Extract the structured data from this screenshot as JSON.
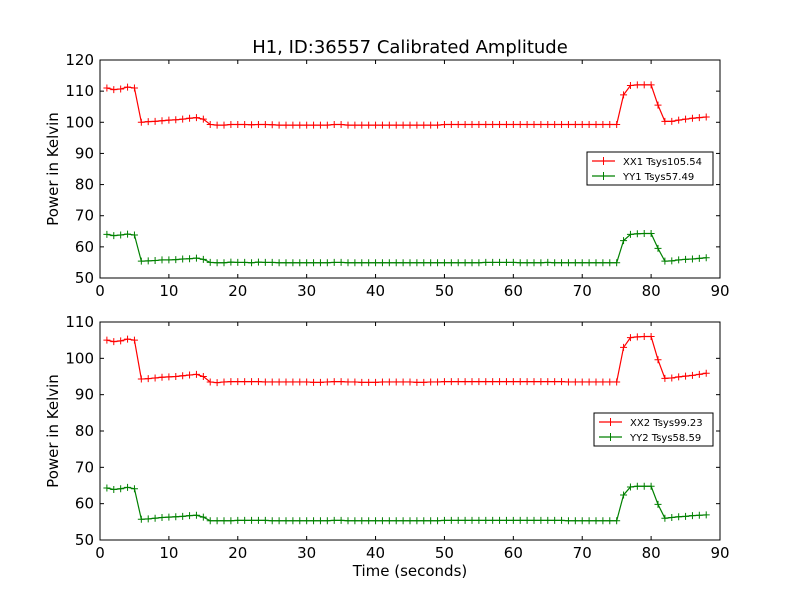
{
  "figure_title": "H1, ID:36557 Calibrated Amplitude",
  "colors": {
    "xx": "#ff0000",
    "yy": "#008000"
  },
  "chart_data": [
    {
      "type": "line",
      "title": "H1, ID:36557 Calibrated Amplitude",
      "xlabel": "",
      "ylabel": "Power in Kelvin",
      "xlim": [
        0,
        90
      ],
      "ylim": [
        50,
        120
      ],
      "xticks": [
        0,
        10,
        20,
        30,
        40,
        50,
        60,
        70,
        80,
        90
      ],
      "yticks": [
        50,
        60,
        70,
        80,
        90,
        100,
        110,
        120
      ],
      "grid": false,
      "legend_position": "center-right",
      "x": [
        1,
        2,
        3,
        4,
        5,
        6,
        7,
        8,
        9,
        10,
        11,
        12,
        13,
        14,
        15,
        16,
        17,
        18,
        19,
        20,
        21,
        22,
        23,
        24,
        25,
        26,
        27,
        28,
        29,
        30,
        31,
        32,
        33,
        34,
        35,
        36,
        37,
        38,
        39,
        40,
        41,
        42,
        43,
        44,
        45,
        46,
        47,
        48,
        49,
        50,
        51,
        52,
        53,
        54,
        55,
        56,
        57,
        58,
        59,
        60,
        61,
        62,
        63,
        64,
        65,
        66,
        67,
        68,
        69,
        70,
        71,
        72,
        73,
        74,
        75,
        76,
        77,
        78,
        79,
        80,
        81,
        82,
        83,
        84,
        85,
        86,
        87,
        88
      ],
      "series": [
        {
          "name": "XX1 Tsys105.54",
          "color": "#ff0000",
          "values": [
            111,
            110.5,
            110.7,
            111.3,
            111,
            100,
            100.2,
            100.3,
            100.5,
            100.7,
            100.8,
            101,
            101.3,
            101.5,
            101,
            99.3,
            99.1,
            99.1,
            99.3,
            99.3,
            99.3,
            99.2,
            99.3,
            99.3,
            99.2,
            99.1,
            99.1,
            99.1,
            99.1,
            99.1,
            99.1,
            99.1,
            99.1,
            99.3,
            99.3,
            99.1,
            99.1,
            99.1,
            99.1,
            99.1,
            99.1,
            99.1,
            99.1,
            99.1,
            99.1,
            99.1,
            99.1,
            99.1,
            99.1,
            99.3,
            99.3,
            99.3,
            99.3,
            99.3,
            99.3,
            99.3,
            99.3,
            99.3,
            99.3,
            99.3,
            99.3,
            99.3,
            99.3,
            99.3,
            99.3,
            99.3,
            99.3,
            99.3,
            99.3,
            99.3,
            99.3,
            99.3,
            99.3,
            99.3,
            99.3,
            108.8,
            111.8,
            112,
            112,
            112,
            105.5,
            100.3,
            100.3,
            100.7,
            101,
            101.3,
            101.5,
            101.7
          ]
        },
        {
          "name": "YY1 Tsys57.49",
          "color": "#008000",
          "values": [
            64,
            63.6,
            63.8,
            64.1,
            63.8,
            55.4,
            55.5,
            55.6,
            55.8,
            55.8,
            55.9,
            56.1,
            56.2,
            56.4,
            56,
            55,
            54.9,
            54.9,
            55.1,
            55,
            55,
            54.9,
            55.1,
            55,
            55,
            54.9,
            54.9,
            54.9,
            54.9,
            54.9,
            54.9,
            54.9,
            54.9,
            55,
            55,
            54.9,
            54.9,
            54.9,
            54.9,
            54.9,
            54.9,
            54.9,
            54.9,
            54.9,
            54.9,
            54.9,
            54.9,
            54.9,
            54.9,
            54.9,
            54.9,
            54.9,
            54.9,
            54.9,
            54.9,
            55,
            55,
            55,
            55,
            55,
            54.9,
            54.9,
            54.9,
            54.9,
            55,
            54.9,
            54.9,
            54.9,
            54.9,
            54.9,
            54.9,
            54.9,
            54.9,
            54.9,
            54.9,
            62,
            64,
            64.2,
            64.3,
            64.3,
            59.5,
            55.4,
            55.5,
            55.8,
            56,
            56.1,
            56.3,
            56.5
          ]
        }
      ]
    },
    {
      "type": "line",
      "title": "",
      "xlabel": "Time (seconds)",
      "ylabel": "Power in Kelvin",
      "xlim": [
        0,
        90
      ],
      "ylim": [
        50,
        110
      ],
      "xticks": [
        0,
        10,
        20,
        30,
        40,
        50,
        60,
        70,
        80,
        90
      ],
      "yticks": [
        50,
        60,
        70,
        80,
        90,
        100,
        110
      ],
      "grid": false,
      "legend_position": "center-right",
      "x": [
        1,
        2,
        3,
        4,
        5,
        6,
        7,
        8,
        9,
        10,
        11,
        12,
        13,
        14,
        15,
        16,
        17,
        18,
        19,
        20,
        21,
        22,
        23,
        24,
        25,
        26,
        27,
        28,
        29,
        30,
        31,
        32,
        33,
        34,
        35,
        36,
        37,
        38,
        39,
        40,
        41,
        42,
        43,
        44,
        45,
        46,
        47,
        48,
        49,
        50,
        51,
        52,
        53,
        54,
        55,
        56,
        57,
        58,
        59,
        60,
        61,
        62,
        63,
        64,
        65,
        66,
        67,
        68,
        69,
        70,
        71,
        72,
        73,
        74,
        75,
        76,
        77,
        78,
        79,
        80,
        81,
        82,
        83,
        84,
        85,
        86,
        87,
        88
      ],
      "series": [
        {
          "name": "XX2 Tsys99.23",
          "color": "#ff0000",
          "values": [
            105,
            104.6,
            104.8,
            105.3,
            105,
            94.3,
            94.4,
            94.6,
            94.8,
            94.9,
            95,
            95.2,
            95.4,
            95.6,
            95,
            93.5,
            93.3,
            93.5,
            93.6,
            93.6,
            93.6,
            93.6,
            93.6,
            93.5,
            93.5,
            93.5,
            93.5,
            93.5,
            93.5,
            93.5,
            93.4,
            93.4,
            93.5,
            93.6,
            93.6,
            93.5,
            93.5,
            93.4,
            93.4,
            93.4,
            93.5,
            93.5,
            93.5,
            93.5,
            93.5,
            93.4,
            93.4,
            93.5,
            93.5,
            93.6,
            93.6,
            93.6,
            93.6,
            93.6,
            93.6,
            93.6,
            93.6,
            93.6,
            93.6,
            93.6,
            93.6,
            93.6,
            93.6,
            93.6,
            93.6,
            93.6,
            93.6,
            93.5,
            93.5,
            93.5,
            93.5,
            93.5,
            93.5,
            93.5,
            93.5,
            103,
            105.7,
            105.9,
            106,
            106,
            99.6,
            94.5,
            94.6,
            94.9,
            95.1,
            95.3,
            95.6,
            95.9
          ]
        },
        {
          "name": "YY2 Tsys58.59",
          "color": "#008000",
          "values": [
            64.3,
            63.9,
            64.1,
            64.5,
            64.1,
            55.7,
            55.8,
            56,
            56.2,
            56.3,
            56.4,
            56.5,
            56.7,
            56.8,
            56.3,
            55.3,
            55.3,
            55.3,
            55.3,
            55.4,
            55.4,
            55.4,
            55.4,
            55.4,
            55.3,
            55.3,
            55.3,
            55.3,
            55.3,
            55.3,
            55.3,
            55.3,
            55.3,
            55.4,
            55.4,
            55.3,
            55.3,
            55.3,
            55.3,
            55.3,
            55.3,
            55.3,
            55.3,
            55.3,
            55.3,
            55.3,
            55.3,
            55.3,
            55.3,
            55.4,
            55.4,
            55.4,
            55.4,
            55.4,
            55.4,
            55.4,
            55.4,
            55.4,
            55.4,
            55.4,
            55.4,
            55.4,
            55.4,
            55.4,
            55.4,
            55.4,
            55.4,
            55.3,
            55.3,
            55.3,
            55.3,
            55.3,
            55.3,
            55.3,
            55.3,
            62.4,
            64.6,
            64.8,
            64.8,
            64.8,
            59.8,
            56,
            56.2,
            56.4,
            56.5,
            56.7,
            56.8,
            56.9
          ]
        }
      ]
    }
  ]
}
